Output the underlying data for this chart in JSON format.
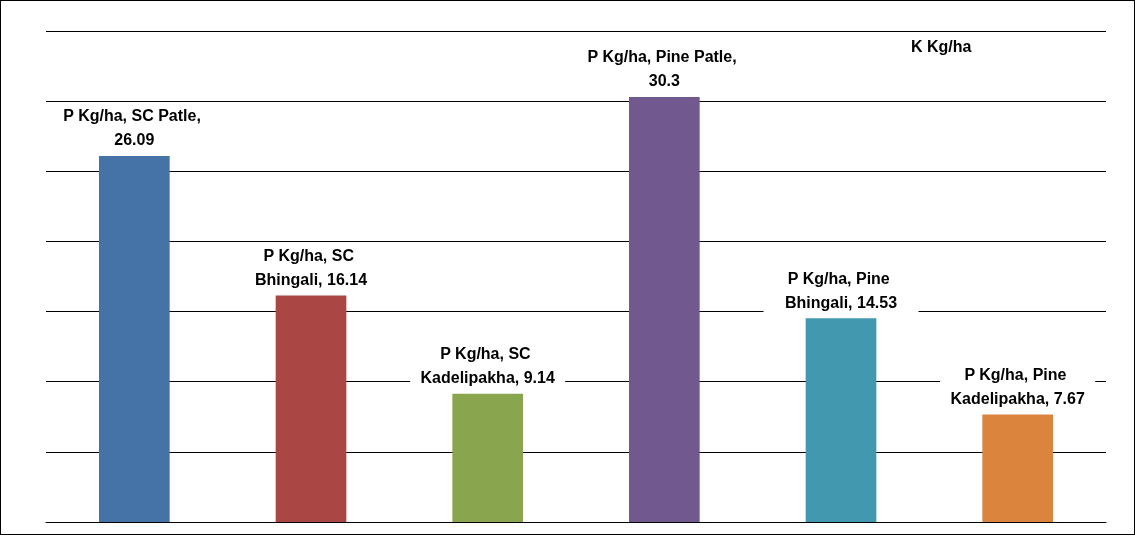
{
  "chart_data": {
    "type": "bar",
    "title": "K Kg/ha",
    "categories": [
      null,
      null,
      null,
      null,
      null,
      null
    ],
    "series": [
      {
        "values": [
          26.09,
          16.14,
          9.14,
          30.3,
          14.53,
          7.67
        ],
        "colors": [
          "#4572a7",
          "#aa4643",
          "#89a54e",
          "#71588f",
          "#4198af",
          "#db843d"
        ],
        "value_labels": [
          "P Kg/ha, SC Patle, 26.09",
          "P Kg/ha, SC Bhingali, 16.14",
          "P Kg/ha, SC Kadelipakha, 9.14",
          "P Kg/ha, Pine Patle, 30.3",
          "P Kg/ha, Pine Bhingali, 14.53",
          "P Kg/ha, Pine Kadelipakha, 7.67"
        ]
      }
    ],
    "ylim": [
      0,
      35
    ],
    "yticks": [
      {
        "value": 0,
        "label": null
      },
      {
        "value": 5,
        "label": null
      },
      {
        "value": 10,
        "label": null
      },
      {
        "value": 15,
        "label": null
      },
      {
        "value": 20,
        "label": null
      },
      {
        "value": 25,
        "label": null
      },
      {
        "value": 30,
        "label": null
      },
      {
        "value": 35,
        "label": null
      }
    ],
    "grid": "y"
  }
}
